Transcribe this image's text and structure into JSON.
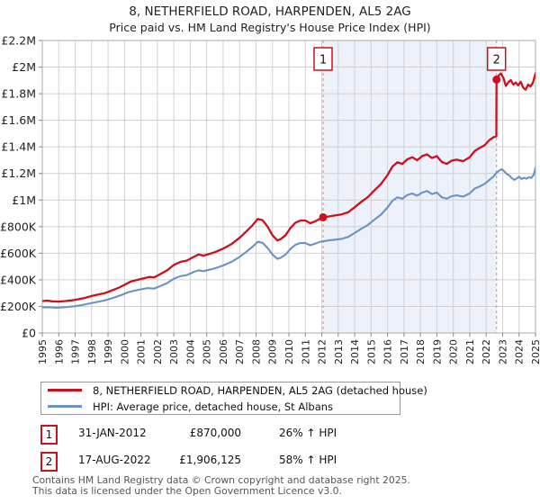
{
  "title": "8, NETHERFIELD ROAD, HARPENDEN, AL5 2AG",
  "subtitle": "Price paid vs. HM Land Registry's House Price Index (HPI)",
  "colors": {
    "property_line": "#cc1020",
    "hpi_line": "#6b92c3",
    "grid": "#d0d0d0",
    "plot_border": "#ababab",
    "shade": "#edf2fa",
    "event_dash": "#f09090",
    "marker_box_border": "#cc1020",
    "footer_text": "#565656"
  },
  "chart_data": {
    "type": "line",
    "title": "8, NETHERFIELD ROAD, HARPENDEN, AL5 2AG — Price paid vs. HPI",
    "xlabel": "",
    "ylabel": "",
    "x_range": [
      1995,
      2025
    ],
    "x_tick_labels": [
      "1995",
      "1996",
      "1997",
      "1998",
      "1999",
      "2000",
      "2001",
      "2002",
      "2003",
      "2004",
      "2005",
      "2006",
      "2007",
      "2008",
      "2009",
      "2010",
      "2011",
      "2012",
      "2013",
      "2014",
      "2015",
      "2016",
      "2017",
      "2018",
      "2019",
      "2020",
      "2021",
      "2022",
      "2023",
      "2024",
      "2025"
    ],
    "y_range_gbp": [
      0,
      2200000
    ],
    "y_ticks_k": [
      [
        0,
        "£0"
      ],
      [
        200,
        "£200K"
      ],
      [
        400,
        "£400K"
      ],
      [
        600,
        "£600K"
      ],
      [
        800,
        "£800K"
      ],
      [
        1000,
        "£1M"
      ],
      [
        1200,
        "£1.2M"
      ],
      [
        1400,
        "£1.4M"
      ],
      [
        1600,
        "£1.6M"
      ],
      [
        1800,
        "£1.8M"
      ],
      [
        2000,
        "£2M"
      ],
      [
        2200,
        "£2.2M"
      ]
    ],
    "grid": true,
    "legend_position": "below",
    "shaded_region_years": [
      2012.08,
      2022.63
    ],
    "series": [
      {
        "name": "HPI: Average price, detached house, St Albans",
        "color": "#6b92c3",
        "points_year_k": [
          [
            1995.0,
            192
          ],
          [
            1995.4,
            194
          ],
          [
            1995.8,
            190
          ],
          [
            1996.2,
            192
          ],
          [
            1996.6,
            196
          ],
          [
            1997.0,
            202
          ],
          [
            1997.4,
            210
          ],
          [
            1997.8,
            220
          ],
          [
            1998.2,
            230
          ],
          [
            1998.6,
            240
          ],
          [
            1999.0,
            252
          ],
          [
            1999.4,
            268
          ],
          [
            1999.8,
            285
          ],
          [
            2000.2,
            305
          ],
          [
            2000.6,
            318
          ],
          [
            2001.0,
            328
          ],
          [
            2001.4,
            338
          ],
          [
            2001.8,
            334
          ],
          [
            2002.2,
            354
          ],
          [
            2002.6,
            376
          ],
          [
            2003.0,
            408
          ],
          [
            2003.4,
            428
          ],
          [
            2003.8,
            436
          ],
          [
            2004.2,
            458
          ],
          [
            2004.5,
            472
          ],
          [
            2004.8,
            465
          ],
          [
            2005.1,
            474
          ],
          [
            2005.5,
            486
          ],
          [
            2006.0,
            508
          ],
          [
            2006.5,
            535
          ],
          [
            2007.0,
            572
          ],
          [
            2007.4,
            610
          ],
          [
            2007.8,
            650
          ],
          [
            2008.1,
            686
          ],
          [
            2008.4,
            678
          ],
          [
            2008.7,
            640
          ],
          [
            2009.0,
            590
          ],
          [
            2009.3,
            558
          ],
          [
            2009.5,
            566
          ],
          [
            2009.8,
            590
          ],
          [
            2010.1,
            632
          ],
          [
            2010.4,
            664
          ],
          [
            2010.7,
            677
          ],
          [
            2011.0,
            676
          ],
          [
            2011.3,
            660
          ],
          [
            2011.6,
            672
          ],
          [
            2011.9,
            686
          ],
          [
            2012.08,
            690
          ],
          [
            2012.4,
            696
          ],
          [
            2012.8,
            702
          ],
          [
            2013.2,
            708
          ],
          [
            2013.6,
            722
          ],
          [
            2014.0,
            752
          ],
          [
            2014.4,
            784
          ],
          [
            2014.8,
            812
          ],
          [
            2015.2,
            852
          ],
          [
            2015.6,
            890
          ],
          [
            2016.0,
            944
          ],
          [
            2016.3,
            995
          ],
          [
            2016.6,
            1020
          ],
          [
            2016.9,
            1010
          ],
          [
            2017.2,
            1038
          ],
          [
            2017.5,
            1050
          ],
          [
            2017.8,
            1032
          ],
          [
            2018.1,
            1056
          ],
          [
            2018.4,
            1068
          ],
          [
            2018.7,
            1045
          ],
          [
            2019.0,
            1056
          ],
          [
            2019.3,
            1021
          ],
          [
            2019.6,
            1010
          ],
          [
            2019.9,
            1029
          ],
          [
            2020.2,
            1036
          ],
          [
            2020.6,
            1026
          ],
          [
            2021.0,
            1050
          ],
          [
            2021.3,
            1086
          ],
          [
            2021.6,
            1102
          ],
          [
            2021.9,
            1122
          ],
          [
            2022.2,
            1152
          ],
          [
            2022.45,
            1178
          ],
          [
            2022.63,
            1206
          ],
          [
            2022.8,
            1222
          ],
          [
            2022.95,
            1232
          ],
          [
            2023.1,
            1216
          ],
          [
            2023.25,
            1196
          ],
          [
            2023.4,
            1186
          ],
          [
            2023.55,
            1166
          ],
          [
            2023.7,
            1152
          ],
          [
            2023.85,
            1162
          ],
          [
            2024.0,
            1176
          ],
          [
            2024.15,
            1158
          ],
          [
            2024.3,
            1168
          ],
          [
            2024.45,
            1160
          ],
          [
            2024.6,
            1172
          ],
          [
            2024.75,
            1166
          ],
          [
            2024.9,
            1192
          ],
          [
            2025.0,
            1240
          ],
          [
            2025.05,
            1248
          ]
        ]
      },
      {
        "name": "8, NETHERFIELD ROAD, HARPENDEN, AL5 2AG (detached house)",
        "color": "#cc1020",
        "points_year_k": [
          [
            1995.0,
            240
          ],
          [
            1995.3,
            244
          ],
          [
            1995.6,
            238
          ],
          [
            1996.0,
            236
          ],
          [
            1996.4,
            240
          ],
          [
            1996.8,
            246
          ],
          [
            1997.2,
            254
          ],
          [
            1997.6,
            264
          ],
          [
            1998.0,
            278
          ],
          [
            1998.4,
            290
          ],
          [
            1998.8,
            300
          ],
          [
            1999.2,
            318
          ],
          [
            1999.6,
            338
          ],
          [
            2000.0,
            362
          ],
          [
            2000.4,
            388
          ],
          [
            2000.8,
            400
          ],
          [
            2001.2,
            412
          ],
          [
            2001.5,
            422
          ],
          [
            2001.8,
            418
          ],
          [
            2002.2,
            444
          ],
          [
            2002.6,
            472
          ],
          [
            2003.0,
            512
          ],
          [
            2003.4,
            535
          ],
          [
            2003.8,
            545
          ],
          [
            2004.2,
            572
          ],
          [
            2004.5,
            590
          ],
          [
            2004.8,
            582
          ],
          [
            2005.1,
            592
          ],
          [
            2005.5,
            608
          ],
          [
            2006.0,
            634
          ],
          [
            2006.5,
            668
          ],
          [
            2007.0,
            716
          ],
          [
            2007.4,
            762
          ],
          [
            2007.8,
            812
          ],
          [
            2008.1,
            858
          ],
          [
            2008.4,
            848
          ],
          [
            2008.7,
            800
          ],
          [
            2009.0,
            736
          ],
          [
            2009.3,
            696
          ],
          [
            2009.5,
            706
          ],
          [
            2009.8,
            736
          ],
          [
            2010.1,
            790
          ],
          [
            2010.4,
            830
          ],
          [
            2010.7,
            846
          ],
          [
            2011.0,
            846
          ],
          [
            2011.3,
            826
          ],
          [
            2011.6,
            840
          ],
          [
            2011.9,
            860
          ],
          [
            2012.08,
            870
          ],
          [
            2012.4,
            876
          ],
          [
            2012.8,
            884
          ],
          [
            2013.2,
            892
          ],
          [
            2013.6,
            908
          ],
          [
            2014.0,
            946
          ],
          [
            2014.4,
            986
          ],
          [
            2014.8,
            1022
          ],
          [
            2015.2,
            1072
          ],
          [
            2015.6,
            1120
          ],
          [
            2016.0,
            1188
          ],
          [
            2016.3,
            1252
          ],
          [
            2016.6,
            1284
          ],
          [
            2016.9,
            1272
          ],
          [
            2017.2,
            1306
          ],
          [
            2017.5,
            1322
          ],
          [
            2017.8,
            1300
          ],
          [
            2018.1,
            1330
          ],
          [
            2018.4,
            1344
          ],
          [
            2018.7,
            1316
          ],
          [
            2019.0,
            1330
          ],
          [
            2019.3,
            1286
          ],
          [
            2019.6,
            1272
          ],
          [
            2019.9,
            1296
          ],
          [
            2020.2,
            1304
          ],
          [
            2020.6,
            1292
          ],
          [
            2021.0,
            1322
          ],
          [
            2021.3,
            1368
          ],
          [
            2021.6,
            1392
          ],
          [
            2021.9,
            1412
          ],
          [
            2022.2,
            1452
          ],
          [
            2022.45,
            1472
          ],
          [
            2022.62,
            1480
          ],
          [
            2022.63,
            1906
          ],
          [
            2022.75,
            1936
          ],
          [
            2022.9,
            1952
          ],
          [
            2023.05,
            1918
          ],
          [
            2023.2,
            1858
          ],
          [
            2023.35,
            1886
          ],
          [
            2023.5,
            1902
          ],
          [
            2023.65,
            1868
          ],
          [
            2023.8,
            1884
          ],
          [
            2023.95,
            1862
          ],
          [
            2024.1,
            1890
          ],
          [
            2024.25,
            1846
          ],
          [
            2024.4,
            1830
          ],
          [
            2024.55,
            1868
          ],
          [
            2024.7,
            1854
          ],
          [
            2024.85,
            1886
          ],
          [
            2025.0,
            1952
          ],
          [
            2025.05,
            1962
          ]
        ]
      }
    ],
    "markers": [
      {
        "label": "1",
        "year": 2012.08,
        "price_gbp": 870000
      },
      {
        "label": "2",
        "year": 2022.63,
        "price_gbp": 1906125
      }
    ]
  },
  "legend": {
    "items": [
      {
        "label": "8, NETHERFIELD ROAD, HARPENDEN, AL5 2AG (detached house)",
        "color": "#cc1020"
      },
      {
        "label": "HPI: Average price, detached house, St Albans",
        "color": "#6b92c3"
      }
    ]
  },
  "transactions": [
    {
      "num": "1",
      "date": "31-JAN-2012",
      "price": "£870,000",
      "hpi": "26% ↑ HPI"
    },
    {
      "num": "2",
      "date": "17-AUG-2022",
      "price": "£1,906,125",
      "hpi": "58% ↑ HPI"
    }
  ],
  "footer": {
    "line1": "Contains HM Land Registry data © Crown copyright and database right 2025.",
    "line2": "This data is licensed under the Open Government Licence v3.0."
  }
}
